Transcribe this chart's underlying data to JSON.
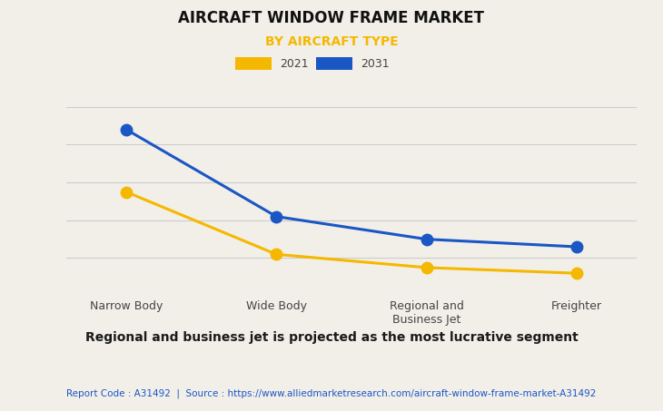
{
  "title": "AIRCRAFT WINDOW FRAME MARKET",
  "subtitle": "BY AIRCRAFT TYPE",
  "categories": [
    "Narrow Body",
    "Wide Body",
    "Regional and\nBusiness Jet",
    "Freighter"
  ],
  "series_2021": [
    55,
    22,
    15,
    12
  ],
  "series_2031": [
    88,
    42,
    30,
    26
  ],
  "color_2021": "#F5B800",
  "color_2031": "#1A56C4",
  "subtitle_color": "#F5B800",
  "background_color": "#F2EFE9",
  "plot_bg_color": "#F2EFE9",
  "legend_label_2021": "2021",
  "legend_label_2031": "2031",
  "footer_text": "Report Code : A31492  |  Source : https://www.alliedmarketresearch.com/aircraft-window-frame-market-A31492",
  "footer_color": "#1A56C4",
  "bottom_note": "Regional and business jet is projected as the most lucrative segment",
  "ylim": [
    0,
    100
  ],
  "marker_size": 9,
  "line_width": 2.2,
  "title_fontsize": 12,
  "subtitle_fontsize": 10,
  "tick_label_fontsize": 9,
  "legend_fontsize": 9,
  "note_fontsize": 10,
  "footer_fontsize": 7.5
}
